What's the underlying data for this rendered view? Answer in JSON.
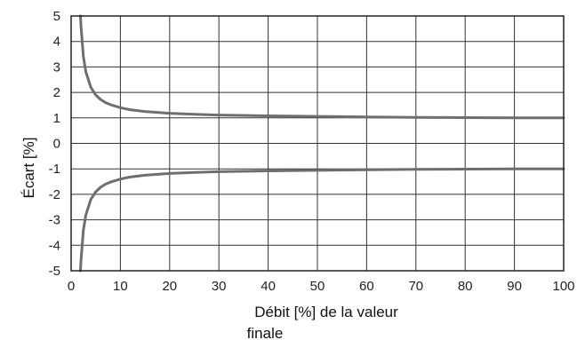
{
  "chart_data": {
    "type": "line",
    "title": "",
    "xlabel_lines": [
      "Débit [%] de la valeur",
      "finale"
    ],
    "ylabel": "Écart [%]",
    "xlim": [
      0,
      100
    ],
    "ylim": [
      -5,
      5
    ],
    "grid": true,
    "legend": "none",
    "x_ticks": [
      "0",
      "10",
      "20",
      "30",
      "40",
      "50",
      "60",
      "70",
      "80",
      "90",
      "100"
    ],
    "y_ticks": [
      "5",
      "4",
      "3",
      "2",
      "1",
      "0",
      "-1",
      "-2",
      "-3",
      "-4",
      "-5"
    ],
    "line_color": "#6e6e6e",
    "grid_color": "#333333",
    "series": [
      {
        "x": [
          1.9,
          2,
          2.5,
          3,
          4,
          5,
          6,
          7,
          8,
          10,
          12,
          15,
          20,
          25,
          30,
          40,
          50,
          60,
          70,
          80,
          90,
          100
        ],
        "y": [
          5.0,
          4.6,
          3.4,
          2.8,
          2.2,
          1.9,
          1.72,
          1.6,
          1.52,
          1.4,
          1.32,
          1.25,
          1.18,
          1.14,
          1.11,
          1.08,
          1.06,
          1.04,
          1.02,
          1.01,
          1.005,
          1.0
        ]
      },
      {
        "x": [
          1.9,
          2,
          2.5,
          3,
          4,
          5,
          6,
          7,
          8,
          10,
          12,
          15,
          20,
          25,
          30,
          40,
          50,
          60,
          70,
          80,
          90,
          100
        ],
        "y": [
          -5.0,
          -4.6,
          -3.4,
          -2.8,
          -2.2,
          -1.9,
          -1.72,
          -1.6,
          -1.52,
          -1.4,
          -1.32,
          -1.25,
          -1.18,
          -1.14,
          -1.11,
          -1.08,
          -1.06,
          -1.04,
          -1.02,
          -1.01,
          -1.005,
          -1.0
        ]
      }
    ]
  }
}
